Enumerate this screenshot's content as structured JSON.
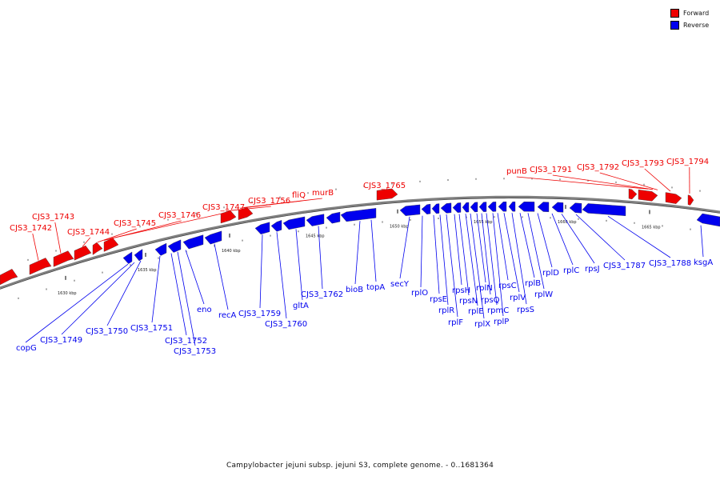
{
  "title": "Campylobacter jejuni subsp. jejuni S3, complete genome. - 0..1681364",
  "legend": [
    {
      "label": "Forward",
      "color": "#ee0000"
    },
    {
      "label": "Reverse",
      "color": "#0000ee"
    }
  ],
  "colors": {
    "forward": "#ee0000",
    "reverse": "#0000ee",
    "axis": "#808080"
  },
  "ticks": [
    "1630 kbp",
    "1635 kbp",
    "1640 kbp",
    "1645 kbp",
    "1650 kbp",
    "1655 kbp",
    "1660 kbp",
    "1665 kbp"
  ],
  "forward_labels": [
    "CJS3_1742",
    "CJS3_1743",
    "CJS3_1744",
    "CJS3_1745",
    "CJS3_1746",
    "CJS3_1747",
    "CJS3_1756",
    "fliQ",
    "murB",
    "CJS3_1765",
    "punB",
    "CJS3_1791",
    "CJS3_1792",
    "CJS3_1793",
    "CJS3_1794"
  ],
  "reverse_labels": [
    "copG",
    "CJS3_1749",
    "CJS3_1750",
    "CJS3_1751",
    "CJS3_1752",
    "CJS3_1753",
    "eno",
    "recA",
    "CJS3_1759",
    "CJS3_1760",
    "gltA",
    "CJS3_1762",
    "bioB",
    "topA",
    "secY",
    "rplO",
    "rpsE",
    "rplR",
    "rplF",
    "rpsH",
    "rpsN",
    "rplE",
    "rplX",
    "rplN",
    "rpsQ",
    "rpmC",
    "rplP",
    "rpsC",
    "rplV",
    "rpsS",
    "rplB",
    "rplW",
    "rplD",
    "rplC",
    "rpsJ",
    "CJS3_1787",
    "CJS3_1788",
    "ksgA"
  ]
}
